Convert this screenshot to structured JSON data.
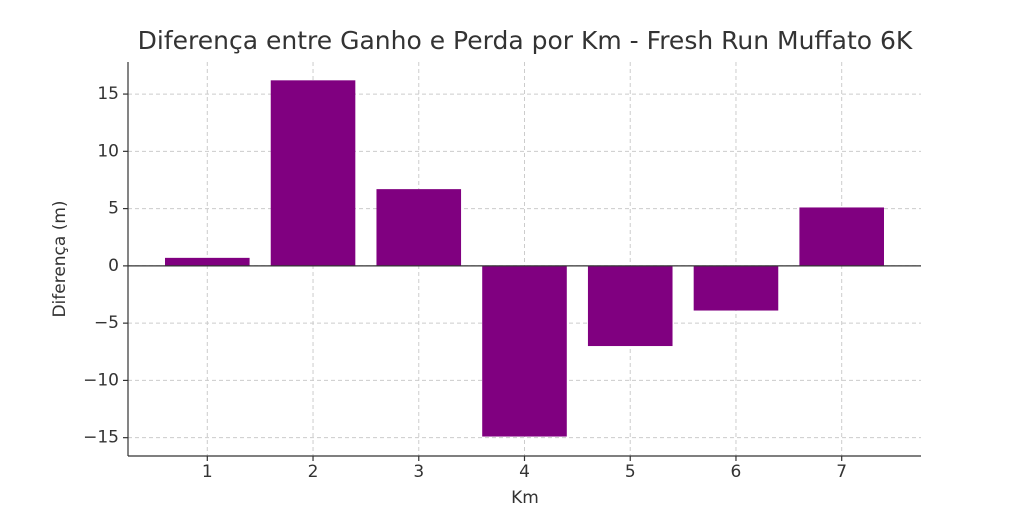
{
  "chart_data": {
    "type": "bar",
    "title": "Diferença entre Ganho e Perda por Km - Fresh Run Muffato 6K",
    "x_label": "Km",
    "y_label": "Diferença (m)",
    "categories": [
      "1",
      "2",
      "3",
      "4",
      "5",
      "6",
      "7"
    ],
    "values": [
      0.7,
      16.2,
      6.7,
      -14.9,
      -7.0,
      -3.9,
      5.1
    ],
    "color": "#800080",
    "ylim": [
      -16.6,
      17.8
    ],
    "yticks": [
      {
        "value": -15,
        "label": "−15"
      },
      {
        "value": -10,
        "label": "−10"
      },
      {
        "value": -5,
        "label": "−5"
      },
      0,
      5,
      10,
      15
    ],
    "grid": true
  }
}
